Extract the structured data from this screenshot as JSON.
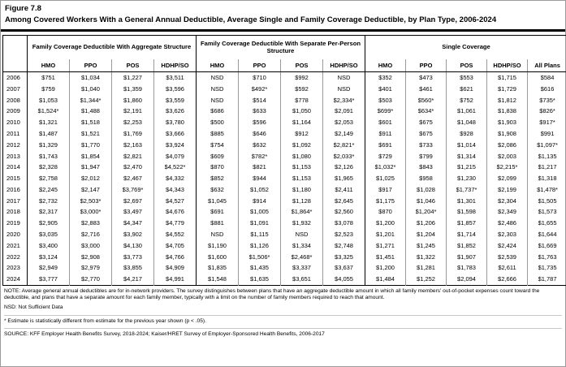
{
  "page": {
    "figure_label": "Figure 7.8",
    "title": "Among Covered Workers With a General Annual Deductible, Average Single and Family Coverage Deductible, by Plan Type, 2006-2024"
  },
  "table": {
    "groups": [
      {
        "label": "Family Coverage Deductible With Aggregate Structure",
        "columns": [
          "HMO",
          "PPO",
          "POS",
          "HDHP/SO"
        ]
      },
      {
        "label": "Family Coverage Deductible With Separate Per-Person Structure",
        "columns": [
          "HMO",
          "PPO",
          "POS",
          "HDHP/SO"
        ]
      },
      {
        "label": "Single Coverage",
        "columns": [
          "HMO",
          "PPO",
          "POS",
          "HDHP/SO",
          "All Plans"
        ]
      }
    ],
    "rows": [
      {
        "year": "2006",
        "values": [
          "$751",
          "$1,034",
          "$1,227",
          "$3,511",
          "NSD",
          "$710",
          "$992",
          "NSD",
          "$352",
          "$473",
          "$553",
          "$1,715",
          "$584"
        ]
      },
      {
        "year": "2007",
        "values": [
          "$759",
          "$1,040",
          "$1,359",
          "$3,596",
          "NSD",
          "$492*",
          "$592",
          "NSD",
          "$401",
          "$461",
          "$621",
          "$1,729",
          "$616"
        ]
      },
      {
        "year": "2008",
        "values": [
          "$1,053",
          "$1,344*",
          "$1,860",
          "$3,559",
          "NSD",
          "$514",
          "$778",
          "$2,334*",
          "$503",
          "$560*",
          "$752",
          "$1,812",
          "$735*"
        ]
      },
      {
        "year": "2009",
        "values": [
          "$1,524*",
          "$1,488",
          "$2,191",
          "$3,626",
          "$686",
          "$633",
          "$1,050",
          "$2,091",
          "$699*",
          "$634*",
          "$1,061",
          "$1,838",
          "$826*"
        ]
      },
      {
        "year": "2010",
        "values": [
          "$1,321",
          "$1,518",
          "$2,253",
          "$3,780",
          "$500",
          "$596",
          "$1,164",
          "$2,053",
          "$601",
          "$675",
          "$1,048",
          "$1,903",
          "$917*"
        ]
      },
      {
        "year": "2011",
        "values": [
          "$1,487",
          "$1,521",
          "$1,769",
          "$3,666",
          "$885",
          "$646",
          "$912",
          "$2,149",
          "$911",
          "$675",
          "$928",
          "$1,908",
          "$991"
        ]
      },
      {
        "year": "2012",
        "values": [
          "$1,329",
          "$1,770",
          "$2,163",
          "$3,924",
          "$754",
          "$632",
          "$1,092",
          "$2,821*",
          "$691",
          "$733",
          "$1,014",
          "$2,086",
          "$1,097*"
        ]
      },
      {
        "year": "2013",
        "values": [
          "$1,743",
          "$1,854",
          "$2,821",
          "$4,079",
          "$609",
          "$782*",
          "$1,080",
          "$2,033*",
          "$729",
          "$799",
          "$1,314",
          "$2,003",
          "$1,135"
        ]
      },
      {
        "year": "2014",
        "values": [
          "$2,328",
          "$1,947",
          "$2,470",
          "$4,522*",
          "$870",
          "$821",
          "$1,153",
          "$2,126",
          "$1,032*",
          "$843",
          "$1,215",
          "$2,215*",
          "$1,217"
        ]
      },
      {
        "year": "2015",
        "values": [
          "$2,758",
          "$2,012",
          "$2,467",
          "$4,332",
          "$852",
          "$944",
          "$1,153",
          "$1,965",
          "$1,025",
          "$958",
          "$1,230",
          "$2,099",
          "$1,318"
        ]
      },
      {
        "year": "2016",
        "values": [
          "$2,245",
          "$2,147",
          "$3,769*",
          "$4,343",
          "$632",
          "$1,052",
          "$1,180",
          "$2,411",
          "$917",
          "$1,028",
          "$1,737*",
          "$2,199",
          "$1,478*"
        ]
      },
      {
        "year": "2017",
        "values": [
          "$2,732",
          "$2,503*",
          "$2,697",
          "$4,527",
          "$1,045",
          "$914",
          "$1,128",
          "$2,645",
          "$1,175",
          "$1,046",
          "$1,301",
          "$2,304",
          "$1,505"
        ]
      },
      {
        "year": "2018",
        "values": [
          "$2,317",
          "$3,000*",
          "$3,497",
          "$4,676",
          "$691",
          "$1,005",
          "$1,864*",
          "$2,560",
          "$870",
          "$1,204*",
          "$1,598",
          "$2,349",
          "$1,573"
        ]
      },
      {
        "year": "2019",
        "values": [
          "$2,905",
          "$2,883",
          "$4,347",
          "$4,779",
          "$881",
          "$1,091",
          "$1,932",
          "$3,078",
          "$1,200",
          "$1,206",
          "$1,857",
          "$2,486",
          "$1,655"
        ]
      },
      {
        "year": "2020",
        "values": [
          "$3,035",
          "$2,716",
          "$3,902",
          "$4,552",
          "NSD",
          "$1,115",
          "NSD",
          "$2,523",
          "$1,201",
          "$1,204",
          "$1,714",
          "$2,303",
          "$1,644"
        ]
      },
      {
        "year": "2021",
        "values": [
          "$3,400",
          "$3,000",
          "$4,130",
          "$4,705",
          "$1,190",
          "$1,126",
          "$1,334",
          "$2,748",
          "$1,271",
          "$1,245",
          "$1,852",
          "$2,424",
          "$1,669"
        ]
      },
      {
        "year": "2022",
        "values": [
          "$3,124",
          "$2,908",
          "$3,773",
          "$4,766",
          "$1,600",
          "$1,506*",
          "$2,468*",
          "$3,325",
          "$1,451",
          "$1,322",
          "$1,907",
          "$2,539",
          "$1,763"
        ]
      },
      {
        "year": "2023",
        "values": [
          "$2,949",
          "$2,979",
          "$3,855",
          "$4,909",
          "$1,835",
          "$1,435",
          "$3,337",
          "$3,637",
          "$1,200",
          "$1,281",
          "$1,783",
          "$2,611",
          "$1,735"
        ]
      },
      {
        "year": "2024",
        "values": [
          "$3,777",
          "$2,770",
          "$4,217",
          "$4,991",
          "$1,548",
          "$1,635",
          "$3,651",
          "$4,055",
          "$1,484",
          "$1,252",
          "$2,094",
          "$2,666",
          "$1,787"
        ]
      }
    ]
  },
  "notes": {
    "note": "NOTE: Average general annual deductibles are for in-network providers. The survey distinguishes between plans that have an aggregate deductible amount in which all family members' out-of-pocket expenses count toward the deductible, and plans that have a separate amount for each family member, typically with a limit on the number of family members required to reach that amount.",
    "nsd": "NSD: Not Sufficient Data",
    "estimate": "* Estimate is statistically different from estimate for the previous year shown (p < .05).",
    "source": "SOURCE: KFF Employer Health Benefits Survey, 2018-2024; Kaiser/HRET Survey of Employer-Sponsored Health Benefits, 2006-2017"
  }
}
